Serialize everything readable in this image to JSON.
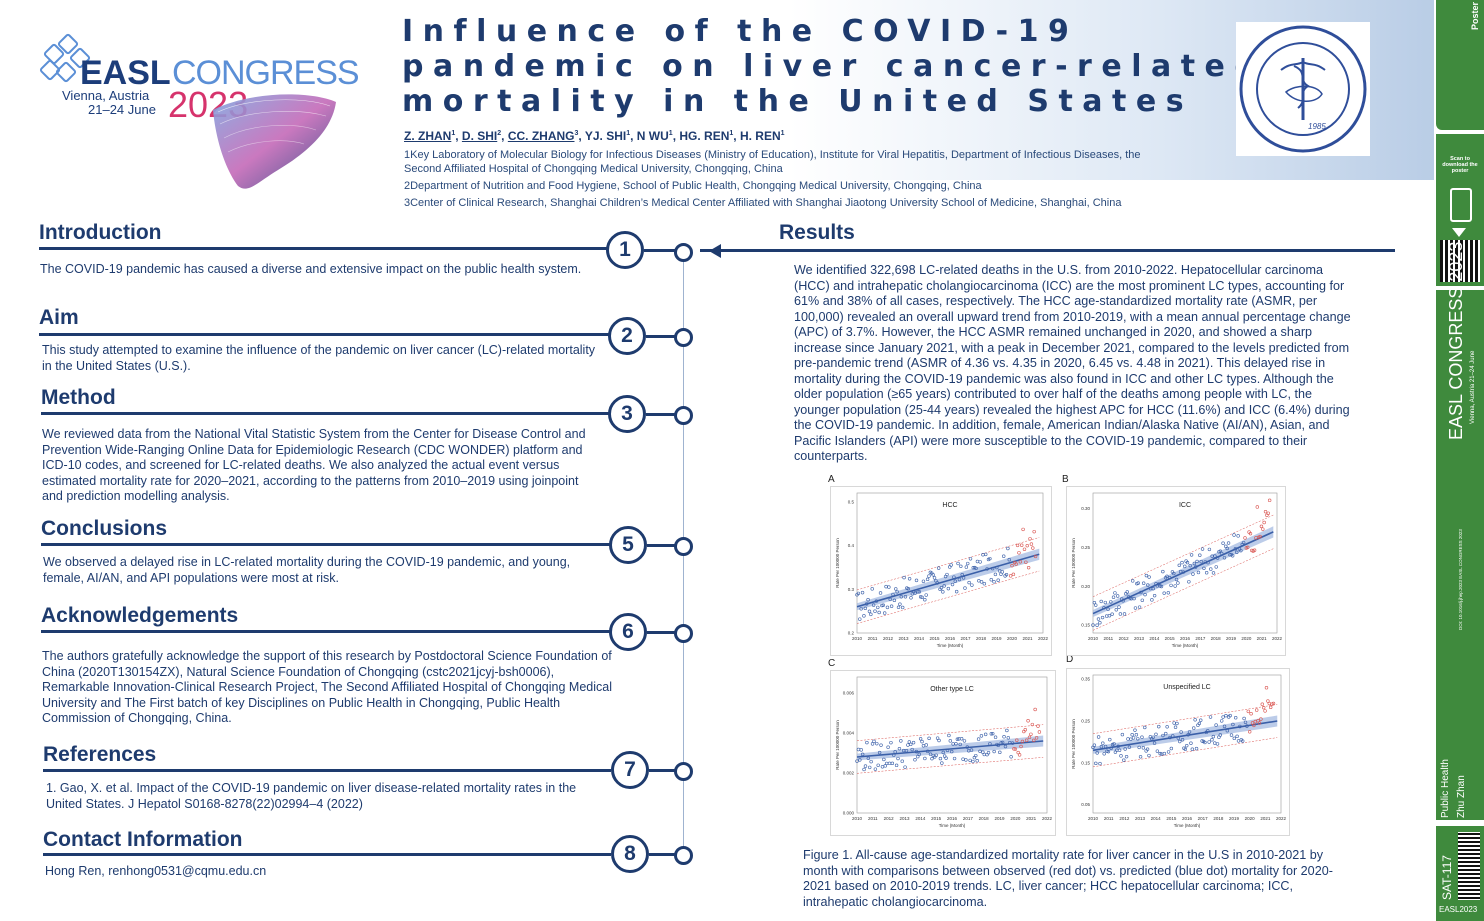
{
  "header": {
    "logo": {
      "easl": "EASL",
      "congress": "CONGRESS",
      "location": "Vienna, Austria",
      "dates": "21–24 June",
      "year": "2023"
    },
    "title_lines": [
      "Influence of the COVID-19",
      "pandemic on liver cancer-related",
      "mortality in the United States"
    ],
    "authors": [
      {
        "name": "Z. ZHAN",
        "sup": "1",
        "underline": true
      },
      {
        "name": "D. SHI",
        "sup": "2",
        "underline": true
      },
      {
        "name": "CC. ZHANG",
        "sup": "3",
        "underline": true
      },
      {
        "name": "YJ. SHI",
        "sup": "1",
        "underline": false
      },
      {
        "name": "N WU",
        "sup": "1",
        "underline": false
      },
      {
        "name": "HG. REN",
        "sup": "1",
        "underline": false
      },
      {
        "name": "H. REN",
        "sup": "1",
        "underline": false
      }
    ],
    "affiliations": [
      "1Key Laboratory of Molecular Biology for Infectious Diseases (Ministry of Education), Institute for Viral Hepatitis, Department of Infectious Diseases, the Second Affiliated Hospital of Chongqing Medical University, Chongqing, China",
      "2Department of Nutrition and Food Hygiene, School of Public Health, Chongqing Medical University, Chongqing, China",
      "3Center of Clinical Research, Shanghai Children’s Medical Center Affiliated with Shanghai Jiaotong University School of Medicine, Shanghai, China"
    ],
    "seal": {
      "year": "1985"
    }
  },
  "sections": {
    "introduction": {
      "title": "Introduction",
      "number": "1",
      "text": "The COVID-19 pandemic has caused a diverse and extensive impact on the public health system."
    },
    "aim": {
      "title": "Aim",
      "number": "2",
      "text": "This study attempted to examine the influence of the pandemic on liver cancer (LC)-related mortality in the United States (U.S.)."
    },
    "method": {
      "title": "Method",
      "number": "3",
      "text": "We reviewed data from the National Vital Statistic System from the Center for Disease Control and Prevention Wide-Ranging Online Data for Epidemiologic Research (CDC WONDER) platform and ICD-10 codes, and screened for LC-related deaths. We also analyzed the actual event versus estimated mortality rate for 2020–2021, according to the patterns from 2010–2019 using joinpoint and prediction modelling analysis."
    },
    "conclusions": {
      "title": "Conclusions",
      "number": "5",
      "text": "We observed a delayed rise in LC-related mortality during the COVID-19 pandemic, and young, female, AI/AN, and API populations were most at risk."
    },
    "acknowledgements": {
      "title": "Acknowledgements",
      "number": "6",
      "text": "The authors gratefully acknowledge the support of this research by Postdoctoral Science Foundation of China (2020T130154ZX), Natural Science Foundation of Chongqing (cstc2021jcyj-bsh0006), Remarkable Innovation-Clinical Research Project, The Second Affiliated Hospital of Chongqing Medical University and The First batch of key Disciplines on Public Health in Chongqing, Public Health Commission of Chongqing, China."
    },
    "references": {
      "title": "References",
      "number": "7",
      "text": "1. Gao, X. et al. Impact of the COVID-19 pandemic on liver disease-related mortality rates in the United States. J Hepatol S0168-8278(22)02994–4 (2022)"
    },
    "contact": {
      "title": "Contact Information",
      "number": "8",
      "text": "Hong Ren, renhong0531@cqmu.edu.cn"
    },
    "results": {
      "title": "Results",
      "text": "We identified 322,698 LC-related deaths in the U.S. from 2010-2022. Hepatocellular carcinoma (HCC) and intrahepatic cholangiocarcinoma (ICC) are the most prominent LC types, accounting for 61% and 38% of all cases, respectively. The HCC age-standardized mortality rate (ASMR, per 100,000) revealed an overall upward trend from 2010-2019, with a mean annual percentage change (APC) of 3.7%. However, the HCC ASMR remained unchanged in 2020, and showed a sharp increase since January 2021, with a peak in December 2021, compared to the levels predicted from pre-pandemic trend (ASMR of 4.36 vs. 4.35 in 2020, 6.45 vs. 4.48 in 2021). This delayed rise in mortality during the COVID-19 pandemic was also found in ICC and other LC types. Although the older population (≥65 years) contributed to over half of the deaths among people with LC, the younger population (25-44 years) revealed the highest APC for HCC (11.6%) and ICC (6.4%) during the COVID-19 pandemic. In addition, female, American Indian/Alaska Native (AI/AN), Asian, and Pacific Islanders (API) were more susceptible to the COVID-19 pandemic, compared to their counterparts.",
      "caption": "Figure 1. All-cause age-standardized mortality rate for liver cancer in the U.S in 2010-2021 by month with comparisons between observed (red dot) vs. predicted (blue dot) mortality for 2020-2021 based on 2010-2019 trends. LC, liver cancer; HCC hepatocellular carcinoma; ICC, intrahepatic cholangiocarcinoma."
    }
  },
  "chart_data": [
    {
      "type": "scatter",
      "panel": "A",
      "title": "HCC",
      "xlabel": "Time (Month)",
      "ylabel": "Rate Per 100000 Person",
      "xticks": [
        "2010",
        "2011",
        "2012",
        "2013",
        "2014",
        "2015",
        "2016",
        "2017",
        "2018",
        "2019",
        "2020",
        "2021",
        "2022"
      ],
      "yticks": [
        "0.2",
        "0.3",
        "0.4",
        "0.5"
      ],
      "ylim": [
        0.2,
        0.52
      ],
      "trend": {
        "start": 0.26,
        "end": 0.38
      },
      "series": [
        {
          "name": "predicted",
          "color": "#3a5fa8"
        },
        {
          "name": "observed",
          "color": "#d9534f"
        }
      ]
    },
    {
      "type": "scatter",
      "panel": "B",
      "title": "ICC",
      "xlabel": "Time (Month)",
      "ylabel": "Rate Per 100000 Person",
      "xticks": [
        "2010",
        "2011",
        "2012",
        "2013",
        "2014",
        "2015",
        "2016",
        "2017",
        "2018",
        "2019",
        "2020",
        "2021",
        "2022"
      ],
      "yticks": [
        "0.15",
        "0.20",
        "0.25",
        "0.30"
      ],
      "ylim": [
        0.14,
        0.32
      ],
      "trend": {
        "start": 0.165,
        "end": 0.27
      },
      "series": [
        {
          "name": "predicted",
          "color": "#3a5fa8"
        },
        {
          "name": "observed",
          "color": "#d9534f"
        }
      ]
    },
    {
      "type": "scatter",
      "panel": "C",
      "title": "Other type LC",
      "xlabel": "Time (Month)",
      "ylabel": "Rate Per 100000 Person",
      "xticks": [
        "2010",
        "2011",
        "2012",
        "2013",
        "2014",
        "2015",
        "2016",
        "2017",
        "2018",
        "2019",
        "2020",
        "2021",
        "2022"
      ],
      "yticks": [
        "0.000",
        "0.002",
        "0.004",
        "0.006"
      ],
      "ylim": [
        0.0,
        0.0068
      ],
      "trend": {
        "start": 0.0028,
        "end": 0.0036
      },
      "series": [
        {
          "name": "predicted",
          "color": "#3a5fa8"
        },
        {
          "name": "observed",
          "color": "#d9534f"
        }
      ]
    },
    {
      "type": "scatter",
      "panel": "D",
      "title": "Unspecified LC",
      "xlabel": "Time (Month)",
      "ylabel": "Rate Per 100000 Person",
      "xticks": [
        "2010",
        "2011",
        "2012",
        "2013",
        "2014",
        "2015",
        "2016",
        "2017",
        "2018",
        "2019",
        "2020",
        "2021",
        "2022"
      ],
      "yticks": [
        "0.05",
        "0.15",
        "0.25",
        "0.35"
      ],
      "ylim": [
        0.03,
        0.36
      ],
      "trend": {
        "start": 0.18,
        "end": 0.25
      },
      "series": [
        {
          "name": "predicted",
          "color": "#3a5fa8"
        },
        {
          "name": "observed",
          "color": "#d9534f"
        }
      ]
    }
  ],
  "sidebar": {
    "brand": "Poster SessionOnline",
    "scan_text": "Scan to download the poster",
    "congress": "EASL CONGRESS 2023",
    "congress_sub": "Vienna, Austria 21–24 June",
    "doi": "DOI: 10.1016/j.jhep.2023 EASL CONGRESS 2023",
    "category": "Public Health",
    "author": "Zhu Zhan",
    "code": "SAT-117",
    "footer": "EASL2023"
  }
}
